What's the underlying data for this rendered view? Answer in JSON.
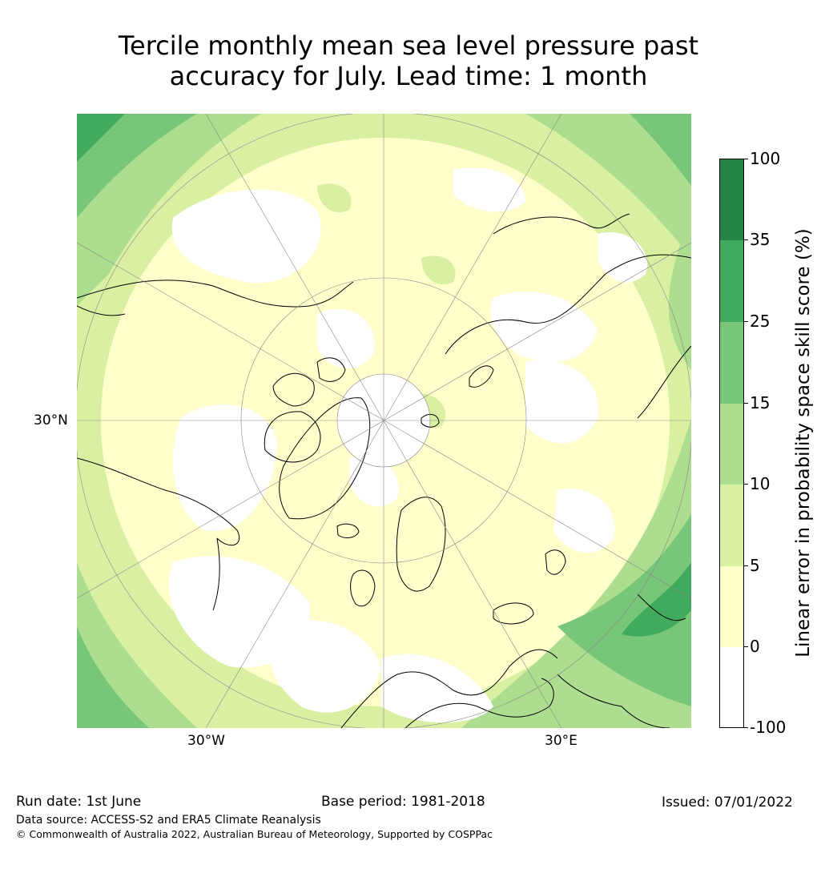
{
  "title_line1": "Tercile monthly mean sea level pressure past",
  "title_line2": "accuracy for July. Lead time: 1 month",
  "map": {
    "projection": "north-polar-stereographic",
    "lat_label": "30°N",
    "lon_label_west": "30°W",
    "lon_label_east": "30°E"
  },
  "colorbar": {
    "label": "Linear error in probability space skill score (%)",
    "ticks": [
      "100",
      "35",
      "25",
      "15",
      "10",
      "5",
      "0",
      "-100"
    ],
    "bins": [
      {
        "from": "-100",
        "to": "0",
        "color": "#ffffff"
      },
      {
        "from": "0",
        "to": "5",
        "color": "#ffffcc"
      },
      {
        "from": "5",
        "to": "10",
        "color": "#d9f0a3"
      },
      {
        "from": "10",
        "to": "15",
        "color": "#addd8e"
      },
      {
        "from": "15",
        "to": "25",
        "color": "#78c679"
      },
      {
        "from": "25",
        "to": "35",
        "color": "#41ab5d"
      },
      {
        "from": "35",
        "to": "100",
        "color": "#238443"
      }
    ]
  },
  "footer": {
    "run_date": "Run date: 1st June",
    "base_period": "Base period: 1981-2018",
    "issued": "Issued: 07/01/2022",
    "data_source": "Data source: ACCESS-S2 and ERA5 Climate Reanalysis",
    "copyright": "© Commonwealth of Australia 2022, Australian Bureau of Meteorology, Supported by COSPPac"
  }
}
